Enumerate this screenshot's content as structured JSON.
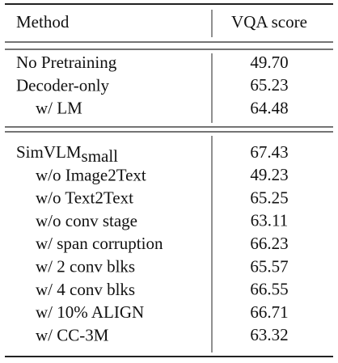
{
  "table": {
    "header": [
      "Method",
      "VQA score"
    ],
    "groups": [
      {
        "rows": [
          {
            "method": "No Pretraining",
            "score": "49.70"
          },
          {
            "method": "Decoder-only",
            "score": "65.23",
            "variants": [
              {
                "method": "w/ LM",
                "score": "64.48"
              }
            ]
          }
        ]
      },
      {
        "rows": [
          {
            "method": "SimVLM",
            "subscript": "small",
            "score": "67.43",
            "variants": [
              {
                "method": "w/o Image2Text",
                "score": "49.23"
              },
              {
                "method": "w/o Text2Text",
                "score": "65.25"
              },
              {
                "method": "w/o conv stage",
                "score": "63.11"
              },
              {
                "method": "w/ span corruption",
                "score": "66.23"
              },
              {
                "method": "w/ 2 conv blks",
                "score": "65.57"
              },
              {
                "method": "w/ 4 conv blks",
                "score": "66.55"
              },
              {
                "method": "w/ 10% ALIGN",
                "score": "66.71"
              },
              {
                "method": "w/ CC-3M",
                "score": "63.32"
              }
            ]
          }
        ]
      }
    ]
  }
}
